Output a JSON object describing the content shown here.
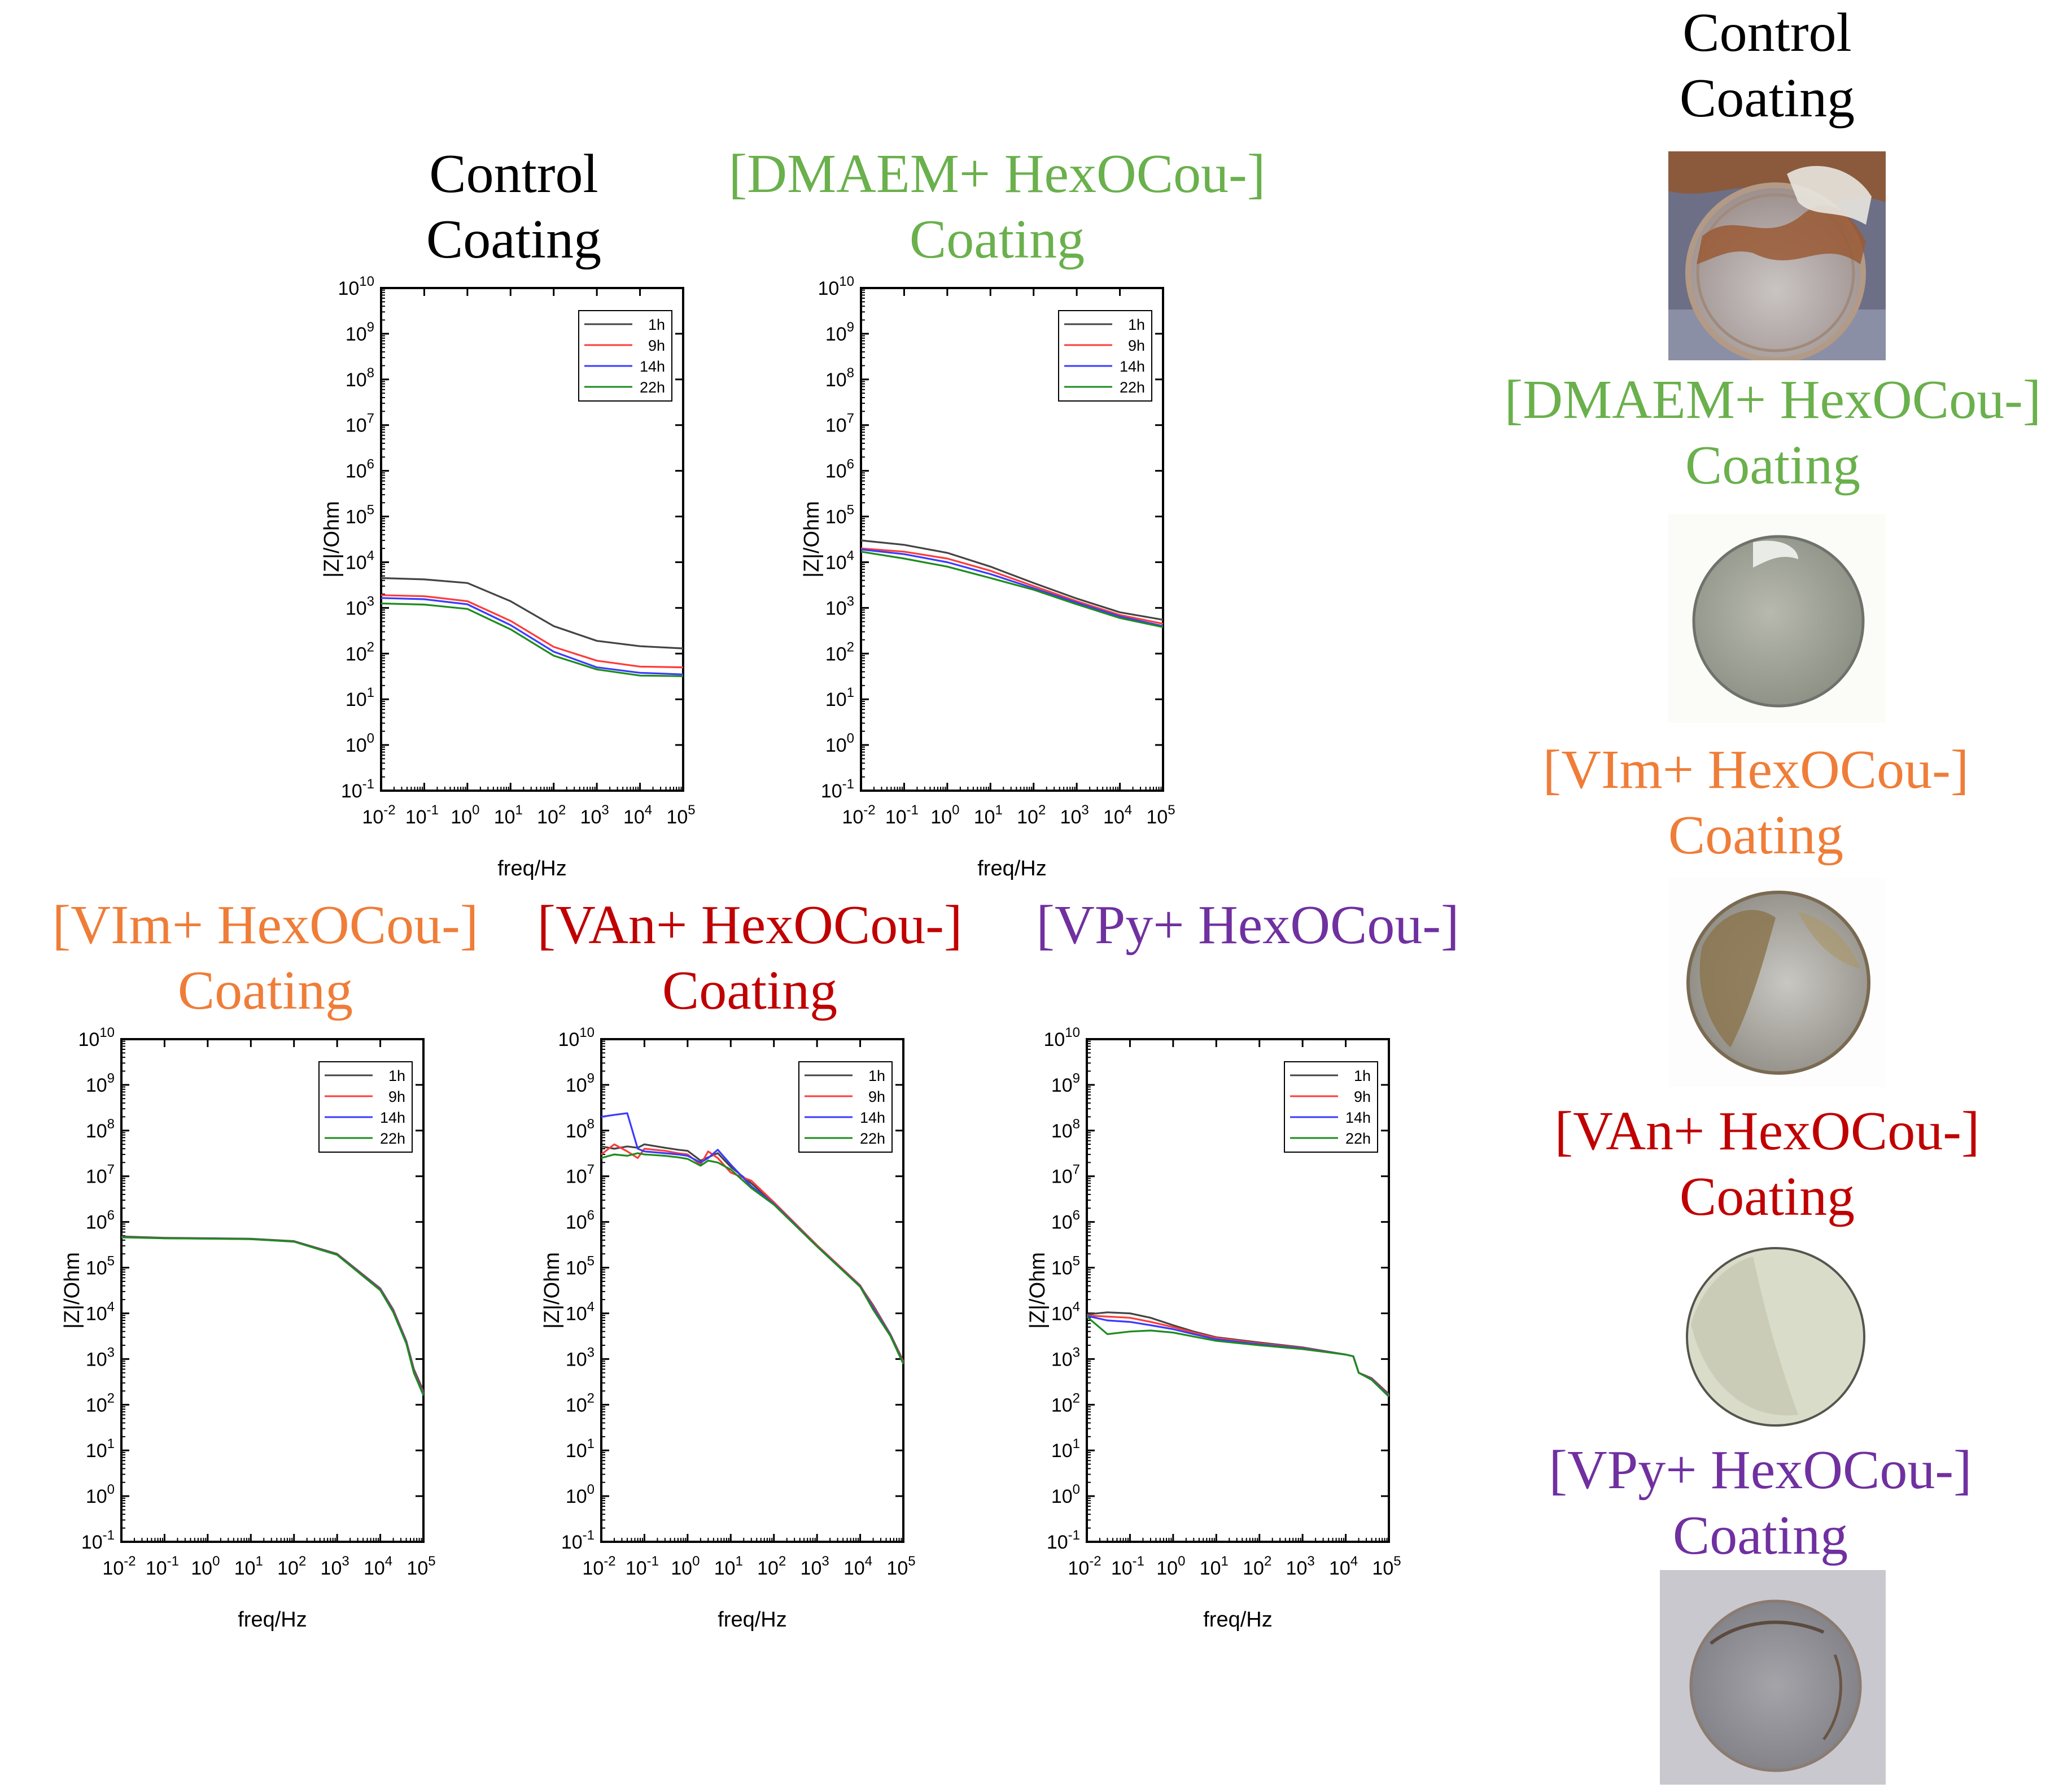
{
  "colors": {
    "control": "#000000",
    "dmaem": "#6ab04c",
    "vim": "#ef7d38",
    "van": "#c00000",
    "vpy": "#7030a0",
    "series_1h": "#444444",
    "series_9h": "#ff3b3b",
    "series_14h": "#3b3bff",
    "series_22h": "#1d8c1d"
  },
  "side_panel": {
    "control": {
      "line1": "Control",
      "line2": "Coating"
    },
    "dmaem": {
      "line1": "[DMAEM+ HexOCou-]",
      "line2": "Coating"
    },
    "vim": {
      "line1": "[VIm+ HexOCou-]",
      "line2": "Coating"
    },
    "van": {
      "line1": "[VAn+ HexOCou-]",
      "line2": "Coating"
    },
    "vpy": {
      "line1": "[VPy+ HexOCou-]",
      "line2": "Coating"
    }
  },
  "chart_data": [
    {
      "id": "control",
      "type": "line",
      "title_line1": "Control",
      "title_line2": "Coating",
      "xlabel": "freq/Hz",
      "ylabel": "|Z|/Ohm",
      "xscale": "log",
      "yscale": "log",
      "xlim": [
        0.01,
        100000
      ],
      "ylim": [
        0.1,
        10000000000
      ],
      "legend_position": "top-right",
      "x": [
        0.01,
        0.1,
        1,
        10,
        100,
        1000,
        10000,
        100000
      ],
      "series": [
        {
          "name": "1h",
          "values": [
            4500,
            4200,
            3500,
            1400,
            400,
            190,
            145,
            130
          ]
        },
        {
          "name": "9h",
          "values": [
            1900,
            1800,
            1400,
            520,
            140,
            70,
            52,
            50
          ]
        },
        {
          "name": "14h",
          "values": [
            1650,
            1550,
            1200,
            420,
            110,
            50,
            38,
            35
          ]
        },
        {
          "name": "22h",
          "values": [
            1250,
            1180,
            950,
            340,
            90,
            45,
            33,
            32
          ]
        }
      ]
    },
    {
      "id": "dmaem",
      "type": "line",
      "title_line1": "[DMAEM+ HexOCou-]",
      "title_line2": "Coating",
      "xlabel": "freq/Hz",
      "ylabel": "|Z|/Ohm",
      "xscale": "log",
      "yscale": "log",
      "xlim": [
        0.01,
        100000
      ],
      "ylim": [
        0.1,
        10000000000
      ],
      "legend_position": "top-right",
      "x": [
        0.01,
        0.1,
        1,
        10,
        100,
        1000,
        10000,
        100000
      ],
      "series": [
        {
          "name": "1h",
          "values": [
            30000,
            24000,
            16000,
            8000,
            3500,
            1600,
            800,
            550
          ]
        },
        {
          "name": "9h",
          "values": [
            20000,
            17000,
            12000,
            6500,
            3000,
            1400,
            700,
            450
          ]
        },
        {
          "name": "14h",
          "values": [
            19000,
            15000,
            10000,
            5500,
            2700,
            1300,
            650,
            400
          ]
        },
        {
          "name": "22h",
          "values": [
            17000,
            12000,
            8000,
            4500,
            2500,
            1200,
            600,
            380
          ]
        }
      ]
    },
    {
      "id": "vim",
      "type": "line",
      "title_line1": "[VIm+ HexOCou-]",
      "title_line2": "Coating",
      "xlabel": "freq/Hz",
      "ylabel": "|Z|/Ohm",
      "xscale": "log",
      "yscale": "log",
      "xlim": [
        0.01,
        100000
      ],
      "ylim": [
        0.1,
        10000000000
      ],
      "legend_position": "top-right",
      "x": [
        0.01,
        0.1,
        1,
        10,
        100,
        1000,
        10000,
        20000,
        40000,
        60000,
        100000
      ],
      "series": [
        {
          "name": "1h",
          "values": [
            480000,
            450000,
            440000,
            430000,
            380000,
            200000,
            35000,
            12000,
            2500,
            600,
            200
          ]
        },
        {
          "name": "9h",
          "values": [
            470000,
            445000,
            435000,
            425000,
            375000,
            195000,
            34000,
            11500,
            2400,
            550,
            180
          ]
        },
        {
          "name": "14h",
          "values": [
            465000,
            440000,
            432000,
            422000,
            372000,
            192000,
            33000,
            11000,
            2300,
            520,
            170
          ]
        },
        {
          "name": "22h",
          "values": [
            460000,
            438000,
            430000,
            420000,
            370000,
            190000,
            32000,
            10500,
            2200,
            500,
            160
          ]
        }
      ]
    },
    {
      "id": "van",
      "type": "line",
      "title_line1": "[VAn+ HexOCou-]",
      "title_line2": "Coating",
      "xlabel": "freq/Hz",
      "ylabel": "|Z|/Ohm",
      "xscale": "log",
      "yscale": "log",
      "xlim": [
        0.01,
        100000
      ],
      "ylim": [
        0.1,
        10000000000
      ],
      "legend_position": "top-right",
      "x": [
        0.01,
        0.02,
        0.04,
        0.07,
        0.1,
        0.3,
        0.6,
        1,
        2,
        3,
        5,
        10,
        30,
        100,
        1000,
        10000,
        20000,
        50000,
        100000
      ],
      "series": [
        {
          "name": "1h",
          "values": [
            45000000,
            40000000,
            45000000,
            42000000,
            50000000,
            42000000,
            38000000,
            36000000,
            22000000,
            26000000,
            32000000,
            16000000,
            7000000,
            2600000,
            300000,
            40000,
            15000,
            3500,
            900
          ]
        },
        {
          "name": "9h",
          "values": [
            30000000,
            50000000,
            35000000,
            25000000,
            40000000,
            36000000,
            32000000,
            30000000,
            18000000,
            35000000,
            25000000,
            12000000,
            8000000,
            2700000,
            310000,
            41000,
            14000,
            3400,
            850
          ]
        },
        {
          "name": "14h",
          "values": [
            200000000,
            220000000,
            240000000,
            40000000,
            35000000,
            32000000,
            30000000,
            28000000,
            20000000,
            25000000,
            38000000,
            18000000,
            6000000,
            2500000,
            295000,
            39000,
            13000,
            3300,
            800
          ]
        },
        {
          "name": "22h",
          "values": [
            25000000,
            30000000,
            28000000,
            32000000,
            30000000,
            28000000,
            26000000,
            24000000,
            17000000,
            22000000,
            20000000,
            14000000,
            5500000,
            2400000,
            290000,
            38000,
            12000,
            3200,
            780
          ]
        }
      ]
    },
    {
      "id": "vpy",
      "type": "line",
      "title_line1": "[VPy+ HexOCou-]",
      "title_line2": "",
      "xlabel": "freq/Hz",
      "ylabel": "|Z|/Ohm",
      "xscale": "log",
      "yscale": "log",
      "xlim": [
        0.01,
        100000
      ],
      "ylim": [
        0.1,
        10000000000
      ],
      "legend_position": "top-right",
      "x": [
        0.01,
        0.03,
        0.1,
        0.3,
        1,
        3,
        10,
        100,
        1000,
        10000,
        15000,
        20000,
        40000,
        100000
      ],
      "series": [
        {
          "name": "1h",
          "values": [
            9500,
            10500,
            10000,
            8000,
            5500,
            4000,
            3000,
            2300,
            1800,
            1250,
            1150,
            500,
            380,
            170
          ]
        },
        {
          "name": "9h",
          "values": [
            9000,
            8500,
            8000,
            6500,
            5000,
            3800,
            2900,
            2200,
            1750,
            1250,
            1150,
            500,
            370,
            160
          ]
        },
        {
          "name": "14h",
          "values": [
            8800,
            7000,
            6500,
            5500,
            4500,
            3500,
            2700,
            2100,
            1700,
            1250,
            1150,
            500,
            360,
            155
          ]
        },
        {
          "name": "22h",
          "values": [
            8500,
            3500,
            4000,
            4200,
            3800,
            3100,
            2500,
            2000,
            1650,
            1250,
            1150,
            500,
            350,
            150
          ]
        }
      ]
    }
  ]
}
